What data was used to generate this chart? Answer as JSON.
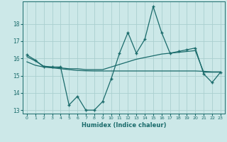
{
  "x": [
    0,
    1,
    2,
    3,
    4,
    5,
    6,
    7,
    8,
    9,
    10,
    11,
    12,
    13,
    14,
    15,
    16,
    17,
    18,
    19,
    20,
    21,
    22,
    23
  ],
  "y_main": [
    16.2,
    15.9,
    15.5,
    15.5,
    15.5,
    13.3,
    13.8,
    13.0,
    13.0,
    13.5,
    14.8,
    16.3,
    17.5,
    16.3,
    17.1,
    19.0,
    17.5,
    16.3,
    16.4,
    16.5,
    16.6,
    15.1,
    14.6,
    15.2
  ],
  "y_trend1": [
    16.1,
    15.85,
    15.55,
    15.5,
    15.45,
    15.4,
    15.4,
    15.35,
    15.35,
    15.35,
    15.5,
    15.65,
    15.8,
    15.95,
    16.05,
    16.15,
    16.25,
    16.3,
    16.35,
    16.4,
    16.45,
    15.2,
    15.2,
    15.2
  ],
  "y_trend2": [
    15.8,
    15.6,
    15.5,
    15.45,
    15.4,
    15.35,
    15.3,
    15.28,
    15.27,
    15.27,
    15.27,
    15.27,
    15.27,
    15.27,
    15.27,
    15.27,
    15.27,
    15.27,
    15.27,
    15.27,
    15.27,
    15.25,
    15.22,
    15.22
  ],
  "background_color": "#cce8e8",
  "grid_color": "#aacfcf",
  "line_color": "#1a6b6b",
  "xlabel": "Humidex (Indice chaleur)",
  "xlim": [
    -0.5,
    23.5
  ],
  "ylim": [
    12.8,
    19.3
  ],
  "yticks": [
    13,
    14,
    15,
    16,
    17,
    18
  ],
  "xticks": [
    0,
    1,
    2,
    3,
    4,
    5,
    6,
    7,
    8,
    9,
    10,
    11,
    12,
    13,
    14,
    15,
    16,
    17,
    18,
    19,
    20,
    21,
    22,
    23
  ]
}
